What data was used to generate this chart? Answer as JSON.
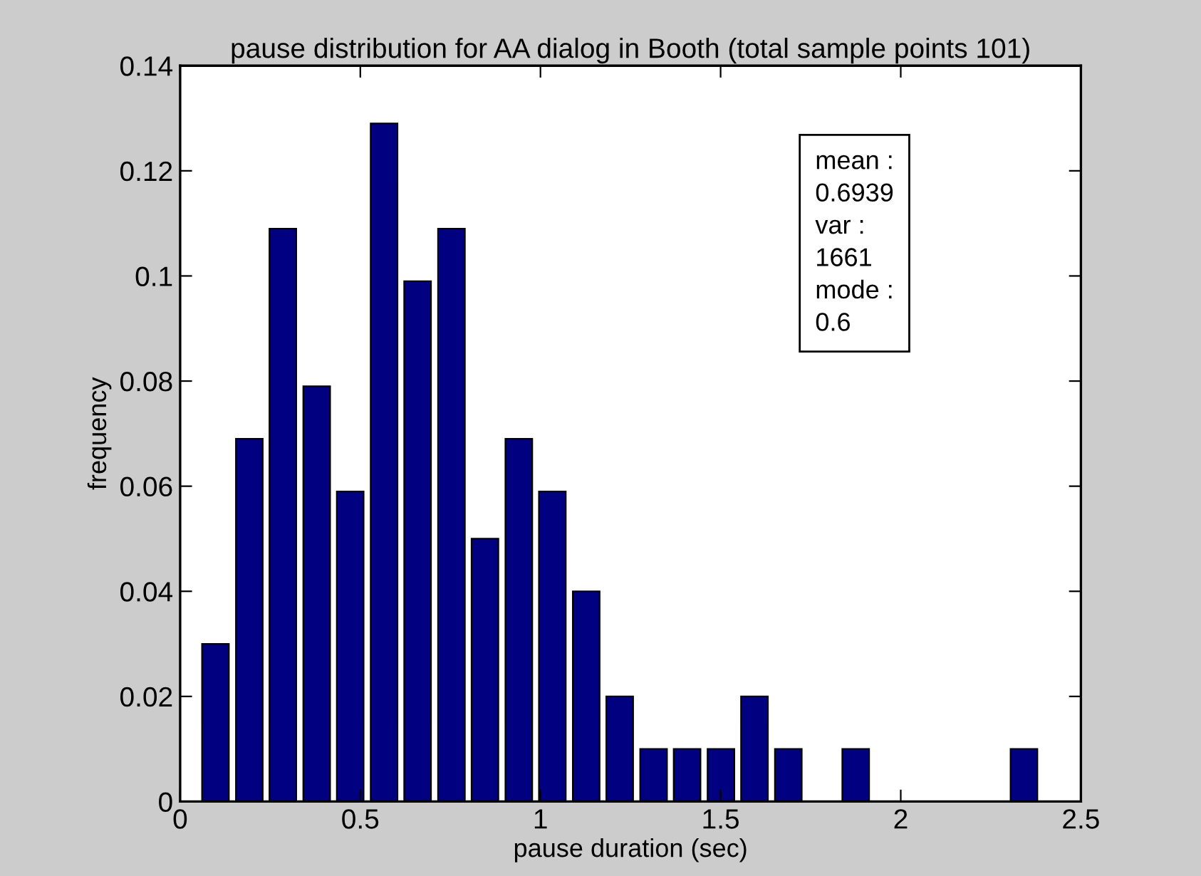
{
  "chart_data": {
    "type": "bar",
    "title": "pause distribution for AA dialog in Booth (total sample points 101)",
    "xlabel": "pause duration (sec)",
    "ylabel": "frequency",
    "x": [
      0.098,
      0.192,
      0.285,
      0.379,
      0.472,
      0.566,
      0.659,
      0.753,
      0.846,
      0.94,
      1.033,
      1.127,
      1.22,
      1.314,
      1.407,
      1.501,
      1.594,
      1.688,
      1.875,
      2.342
    ],
    "values": [
      0.03,
      0.069,
      0.109,
      0.079,
      0.059,
      0.129,
      0.099,
      0.109,
      0.05,
      0.069,
      0.059,
      0.04,
      0.02,
      0.01,
      0.01,
      0.01,
      0.02,
      0.01,
      0.01,
      0.01
    ],
    "color": "#000080",
    "xlim": [
      0,
      2.5
    ],
    "xticks": [
      0,
      0.5,
      1,
      1.5,
      2,
      2.5
    ],
    "ylim": [
      0,
      0.14
    ],
    "yticks": [
      0,
      0.02,
      0.04,
      0.06,
      0.08,
      0.1,
      0.12,
      0.14
    ],
    "grid": false,
    "legend": false,
    "annotations": [
      "mean :\n0.6939\nvar :\n1661\nmode :\n0.6"
    ]
  }
}
